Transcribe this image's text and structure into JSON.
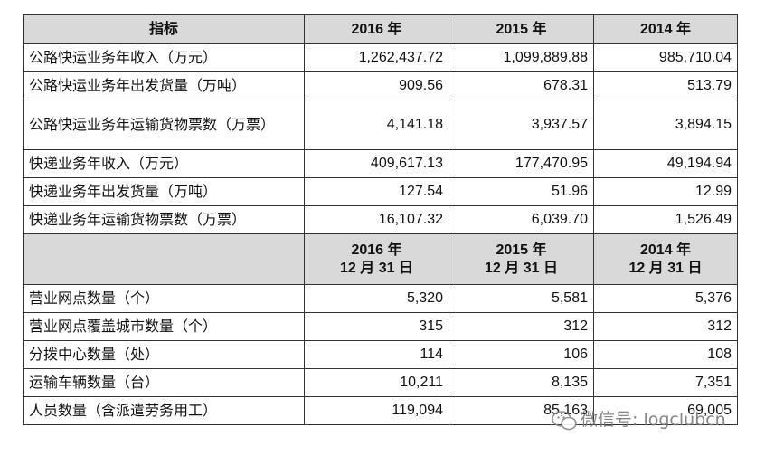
{
  "header": {
    "label": "指标",
    "years": [
      "2016 年",
      "2015 年",
      "2014 年"
    ]
  },
  "section1": [
    {
      "label": "公路快运业务年收入（万元）",
      "values": [
        "1,262,437.72",
        "1,099,889.88",
        "985,710.04"
      ]
    },
    {
      "label": "公路快运业务年出发货量（万吨）",
      "values": [
        "909.56",
        "678.31",
        "513.79"
      ]
    },
    {
      "label": "公路快运业务年运输货物票数（万票）",
      "values": [
        "4,141.18",
        "3,937.57",
        "3,894.15"
      ]
    },
    {
      "label": "快递业务年收入（万元）",
      "values": [
        "409,617.13",
        "177,470.95",
        "49,194.94"
      ]
    },
    {
      "label": "快递业务年出发货量（万吨）",
      "values": [
        "127.54",
        "51.96",
        "12.99"
      ]
    },
    {
      "label": "快递业务年运输货物票数（万票）",
      "values": [
        "16,107.32",
        "6,039.70",
        "1,526.49"
      ]
    }
  ],
  "header2": {
    "years": [
      "2016 年",
      "2015 年",
      "2014 年"
    ],
    "date": "12 月 31 日"
  },
  "section2": [
    {
      "label": "营业网点数量（个）",
      "values": [
        "5,320",
        "5,581",
        "5,376"
      ]
    },
    {
      "label": "营业网点覆盖城市数量（个）",
      "values": [
        "315",
        "312",
        "312"
      ]
    },
    {
      "label": "分拨中心数量（处）",
      "values": [
        "114",
        "106",
        "108"
      ]
    },
    {
      "label": "运输车辆数量（台）",
      "values": [
        "10,211",
        "8,135",
        "7,351"
      ]
    },
    {
      "label": "人员数量（含派遣劳务用工）",
      "values": [
        "119,094",
        "85,163",
        "69,005"
      ]
    }
  ],
  "watermark": {
    "text": "微信号: logclubcn",
    "icon": "wechat-icon"
  }
}
